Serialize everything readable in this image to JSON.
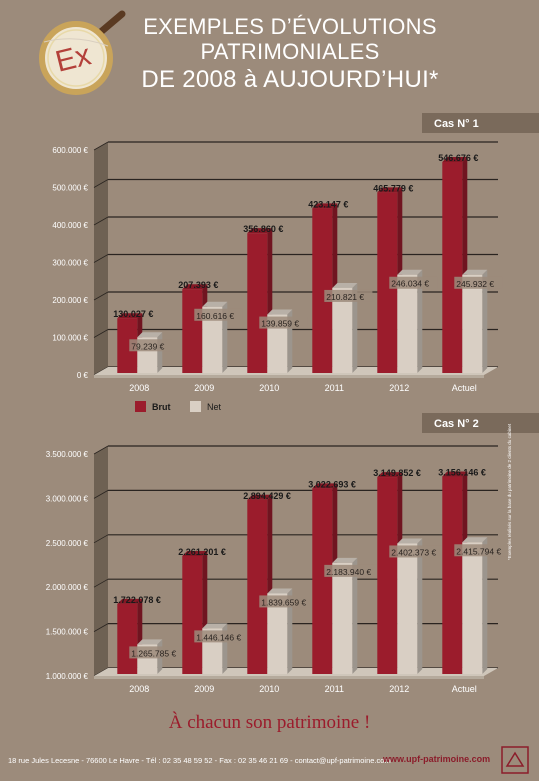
{
  "title": {
    "line1": "EXEMPLES D’ÉVOLUTIONS",
    "line2": "PATRIMONIALES",
    "line3": "DE 2008 à AUJOURD’HUI*"
  },
  "logo": {
    "text": "Ex"
  },
  "slogan": "À chacun son patrimoine !",
  "footer": {
    "address": "18 rue Jules Lecesne - 76600 Le Havre - Tél : 02 35 48 59 52 - Fax : 02 35 46 21 69 - contact@upf-patrimoine.com",
    "website": "www.upf-patrimoine.com"
  },
  "sidenote": "*Exemples réalisés sur la base du patrimoine de 2 clients du cabinet",
  "colors": {
    "brut": "#9b1c2c",
    "net": "#d9cfc4",
    "background": "#9c8b7b",
    "tab": "#7a6a5b"
  },
  "chart_data": [
    {
      "type": "bar",
      "case_label": "Cas N° 1",
      "categories": [
        "2008",
        "2009",
        "2010",
        "2011",
        "2012",
        "Actuel"
      ],
      "series": [
        {
          "name": "Brut",
          "values": [
            130027,
            207393,
            356860,
            423147,
            465779,
            546676
          ],
          "labels": [
            "130.027 €",
            "207.393 €",
            "356.860 €",
            "423.147 €",
            "465.779 €",
            "546.676 €"
          ]
        },
        {
          "name": "Net",
          "values": [
            79239,
            160616,
            139859,
            210821,
            246034,
            245932
          ],
          "labels": [
            "79.239 €",
            "160.616 €",
            "139.859 €",
            "210.821 €",
            "246.034 €",
            "245.932 €"
          ]
        }
      ],
      "yticks": [
        0,
        100000,
        200000,
        300000,
        400000,
        500000,
        600000
      ],
      "ytick_labels": [
        "0 €",
        "100.000 €",
        "200.000 €",
        "300.000 €",
        "400.000 €",
        "500.000 €",
        "600.000 €"
      ],
      "ylim": [
        0,
        600000
      ],
      "legend": [
        "Brut",
        "Net"
      ],
      "legend_position": "bottom-left",
      "grid": true
    },
    {
      "type": "bar",
      "case_label": "Cas N° 2",
      "categories": [
        "2008",
        "2009",
        "2010",
        "2011",
        "2012",
        "Actuel"
      ],
      "series": [
        {
          "name": "Brut",
          "values": [
            1722078,
            2261201,
            2894429,
            3022693,
            3149852,
            3156146
          ],
          "labels": [
            "1.722.078 €",
            "2.261.201 €",
            "2.894.429 €",
            "3.022.693 €",
            "3.149.852 €",
            "3.156.146 €"
          ]
        },
        {
          "name": "Net",
          "values": [
            1265785,
            1446146,
            1839659,
            2183940,
            2402373,
            2415794
          ],
          "labels": [
            "1.265.785 €",
            "1.446.146 €",
            "1.839.659 €",
            "2.183.940 €",
            "2.402.373 €",
            "2.415.794 €"
          ]
        }
      ],
      "yticks": [
        1000000,
        1500000,
        2000000,
        2500000,
        3000000,
        3500000
      ],
      "ytick_labels": [
        "1.000.000 €",
        "1.500.000 €",
        "2.000.000 €",
        "2.500.000 €",
        "3.000.000 €",
        "3.500.000 €"
      ],
      "ylim": [
        1000000,
        3500000
      ],
      "grid": true
    }
  ]
}
